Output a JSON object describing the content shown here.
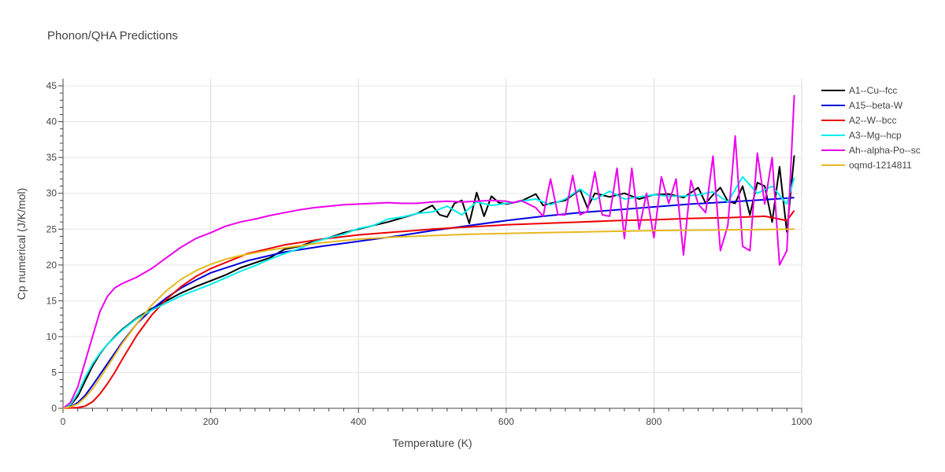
{
  "chart_data": {
    "type": "line",
    "title": "Phonon/QHA Predictions",
    "xlabel": "Temperature (K)",
    "ylabel": "Cp numerical (J/K/mol)",
    "xlim": [
      0,
      1000
    ],
    "ylim": [
      0,
      46
    ],
    "xticks": [
      0,
      200,
      400,
      600,
      800,
      1000
    ],
    "yticks": [
      0,
      5,
      10,
      15,
      20,
      25,
      30,
      35,
      40,
      45
    ],
    "grid": true,
    "legend_position": "top-right",
    "series": [
      {
        "name": "A1--Cu--fcc",
        "color": "#000000",
        "x": [
          0,
          10,
          20,
          30,
          40,
          50,
          60,
          70,
          80,
          90,
          100,
          120,
          140,
          160,
          180,
          200,
          220,
          240,
          260,
          280,
          300,
          320,
          340,
          360,
          380,
          400,
          420,
          440,
          460,
          480,
          490,
          500,
          510,
          520,
          530,
          540,
          550,
          560,
          570,
          580,
          590,
          600,
          620,
          640,
          650,
          660,
          680,
          700,
          710,
          720,
          740,
          760,
          780,
          800,
          820,
          840,
          860,
          870,
          880,
          890,
          900,
          910,
          920,
          930,
          940,
          950,
          960,
          970,
          980,
          990
        ],
        "y": [
          0,
          0.4,
          1.7,
          3.8,
          5.9,
          7.6,
          8.9,
          10.0,
          11.0,
          11.8,
          12.6,
          13.9,
          15.0,
          16.1,
          17.0,
          17.8,
          18.6,
          19.6,
          20.3,
          21.0,
          22.2,
          22.6,
          23.3,
          23.8,
          24.5,
          25.0,
          25.5,
          26.0,
          26.6,
          27.2,
          27.8,
          28.3,
          27.0,
          26.7,
          28.6,
          29.0,
          25.8,
          30.1,
          26.8,
          29.6,
          28.7,
          28.5,
          28.9,
          29.9,
          28.3,
          28.6,
          29.0,
          30.5,
          28.0,
          30.0,
          29.5,
          30.0,
          29.2,
          29.8,
          29.9,
          29.4,
          30.8,
          28.6,
          29.8,
          30.8,
          28.9,
          28.6,
          31.0,
          27.0,
          31.5,
          31.0,
          26.0,
          33.7,
          24.6,
          35.3
        ]
      },
      {
        "name": "A15--beta-W",
        "color": "#0000dd",
        "x": [
          0,
          10,
          20,
          30,
          40,
          60,
          80,
          100,
          120,
          140,
          160,
          180,
          200,
          250,
          300,
          350,
          400,
          450,
          500,
          550,
          600,
          650,
          700,
          750,
          800,
          850,
          900,
          950,
          990
        ],
        "y": [
          0,
          0.2,
          0.8,
          1.8,
          3.2,
          6.2,
          9.2,
          11.8,
          13.8,
          15.4,
          16.8,
          17.9,
          18.9,
          20.6,
          21.8,
          22.6,
          23.3,
          24.0,
          24.8,
          25.5,
          26.2,
          26.8,
          27.3,
          27.7,
          28.1,
          28.5,
          28.8,
          29.1,
          29.4
        ]
      },
      {
        "name": "A2--W--bcc",
        "color": "#ee0000",
        "x": [
          0,
          20,
          30,
          40,
          50,
          60,
          70,
          80,
          90,
          100,
          120,
          140,
          160,
          180,
          200,
          250,
          300,
          350,
          400,
          450,
          500,
          550,
          600,
          650,
          700,
          750,
          800,
          850,
          900,
          950,
          980,
          990
        ],
        "y": [
          0,
          0.1,
          0.3,
          0.9,
          2.0,
          3.4,
          5.0,
          6.8,
          8.5,
          10.2,
          13.0,
          15.2,
          17.0,
          18.4,
          19.5,
          21.6,
          22.8,
          23.6,
          24.2,
          24.6,
          25.0,
          25.3,
          25.6,
          25.8,
          26.0,
          26.2,
          26.3,
          26.5,
          26.6,
          26.8,
          26.2,
          27.6
        ]
      },
      {
        "name": "A3--Mg--hcp",
        "color": "#00eeee",
        "x": [
          0,
          10,
          20,
          30,
          40,
          50,
          60,
          80,
          100,
          120,
          140,
          160,
          180,
          200,
          220,
          240,
          260,
          280,
          300,
          320,
          340,
          360,
          380,
          400,
          420,
          440,
          460,
          480,
          500,
          520,
          540,
          560,
          580,
          600,
          620,
          640,
          660,
          680,
          700,
          720,
          740,
          760,
          780,
          800,
          820,
          840,
          860,
          880,
          900,
          920,
          940,
          960,
          980,
          990
        ],
        "y": [
          0,
          0.5,
          2.1,
          4.3,
          6.2,
          7.7,
          8.9,
          10.9,
          12.5,
          13.7,
          14.7,
          15.7,
          16.5,
          17.3,
          18.2,
          19.1,
          19.9,
          20.8,
          21.6,
          22.3,
          23.2,
          23.8,
          24.3,
          25.1,
          25.5,
          26.4,
          26.7,
          27.2,
          27.4,
          28.2,
          27.0,
          28.8,
          28.3,
          28.6,
          28.9,
          29.2,
          28.4,
          29.2,
          30.6,
          29.1,
          30.3,
          29.2,
          29.5,
          29.8,
          29.6,
          29.6,
          29.8,
          30.2,
          28.8,
          32.3,
          30.0,
          31.0,
          28.5,
          32.2
        ]
      },
      {
        "name": "Ah--alpha-Po--sc",
        "color": "#ee00ee",
        "x": [
          0,
          10,
          20,
          30,
          40,
          50,
          60,
          70,
          80,
          100,
          120,
          140,
          160,
          180,
          200,
          220,
          240,
          260,
          280,
          300,
          320,
          340,
          360,
          380,
          400,
          420,
          440,
          460,
          480,
          500,
          520,
          540,
          560,
          580,
          600,
          610,
          620,
          640,
          650,
          660,
          670,
          680,
          690,
          700,
          710,
          720,
          730,
          740,
          750,
          760,
          770,
          780,
          790,
          800,
          810,
          820,
          830,
          840,
          850,
          860,
          870,
          880,
          890,
          900,
          910,
          920,
          930,
          940,
          950,
          960,
          970,
          980,
          990
        ],
        "y": [
          0,
          0.8,
          3.0,
          6.5,
          10.0,
          13.5,
          15.6,
          16.8,
          17.4,
          18.3,
          19.5,
          21.0,
          22.5,
          23.7,
          24.5,
          25.4,
          26.0,
          26.4,
          26.9,
          27.3,
          27.7,
          28.0,
          28.2,
          28.4,
          28.5,
          28.6,
          28.7,
          28.6,
          28.6,
          28.8,
          28.9,
          28.8,
          28.9,
          29.0,
          28.9,
          28.7,
          29.0,
          28.0,
          26.8,
          32.0,
          27.0,
          27.0,
          32.5,
          27.0,
          27.5,
          33.0,
          27.0,
          26.8,
          33.5,
          23.7,
          33.5,
          25.0,
          30.0,
          23.8,
          32.3,
          28.6,
          32.0,
          21.4,
          31.8,
          28.5,
          27.3,
          35.2,
          22.0,
          25.5,
          38.0,
          22.6,
          22.0,
          35.6,
          28.5,
          35.0,
          20.0,
          22.0,
          43.7
        ]
      },
      {
        "name": "oqmd-1214811",
        "color": "#e6b820",
        "x": [
          0,
          10,
          20,
          30,
          40,
          50,
          60,
          80,
          100,
          120,
          140,
          160,
          180,
          200,
          220,
          240,
          260,
          280,
          300,
          350,
          400,
          450,
          500,
          550,
          600,
          650,
          700,
          750,
          800,
          850,
          900,
          950,
          990
        ],
        "y": [
          0,
          0.2,
          0.6,
          1.5,
          2.7,
          4.2,
          5.8,
          9.0,
          11.8,
          14.4,
          16.4,
          18.0,
          19.2,
          20.1,
          20.8,
          21.3,
          21.7,
          22.1,
          22.4,
          23.1,
          23.6,
          23.9,
          24.1,
          24.3,
          24.4,
          24.5,
          24.6,
          24.7,
          24.8,
          24.85,
          24.9,
          24.95,
          25.0
        ]
      }
    ]
  }
}
